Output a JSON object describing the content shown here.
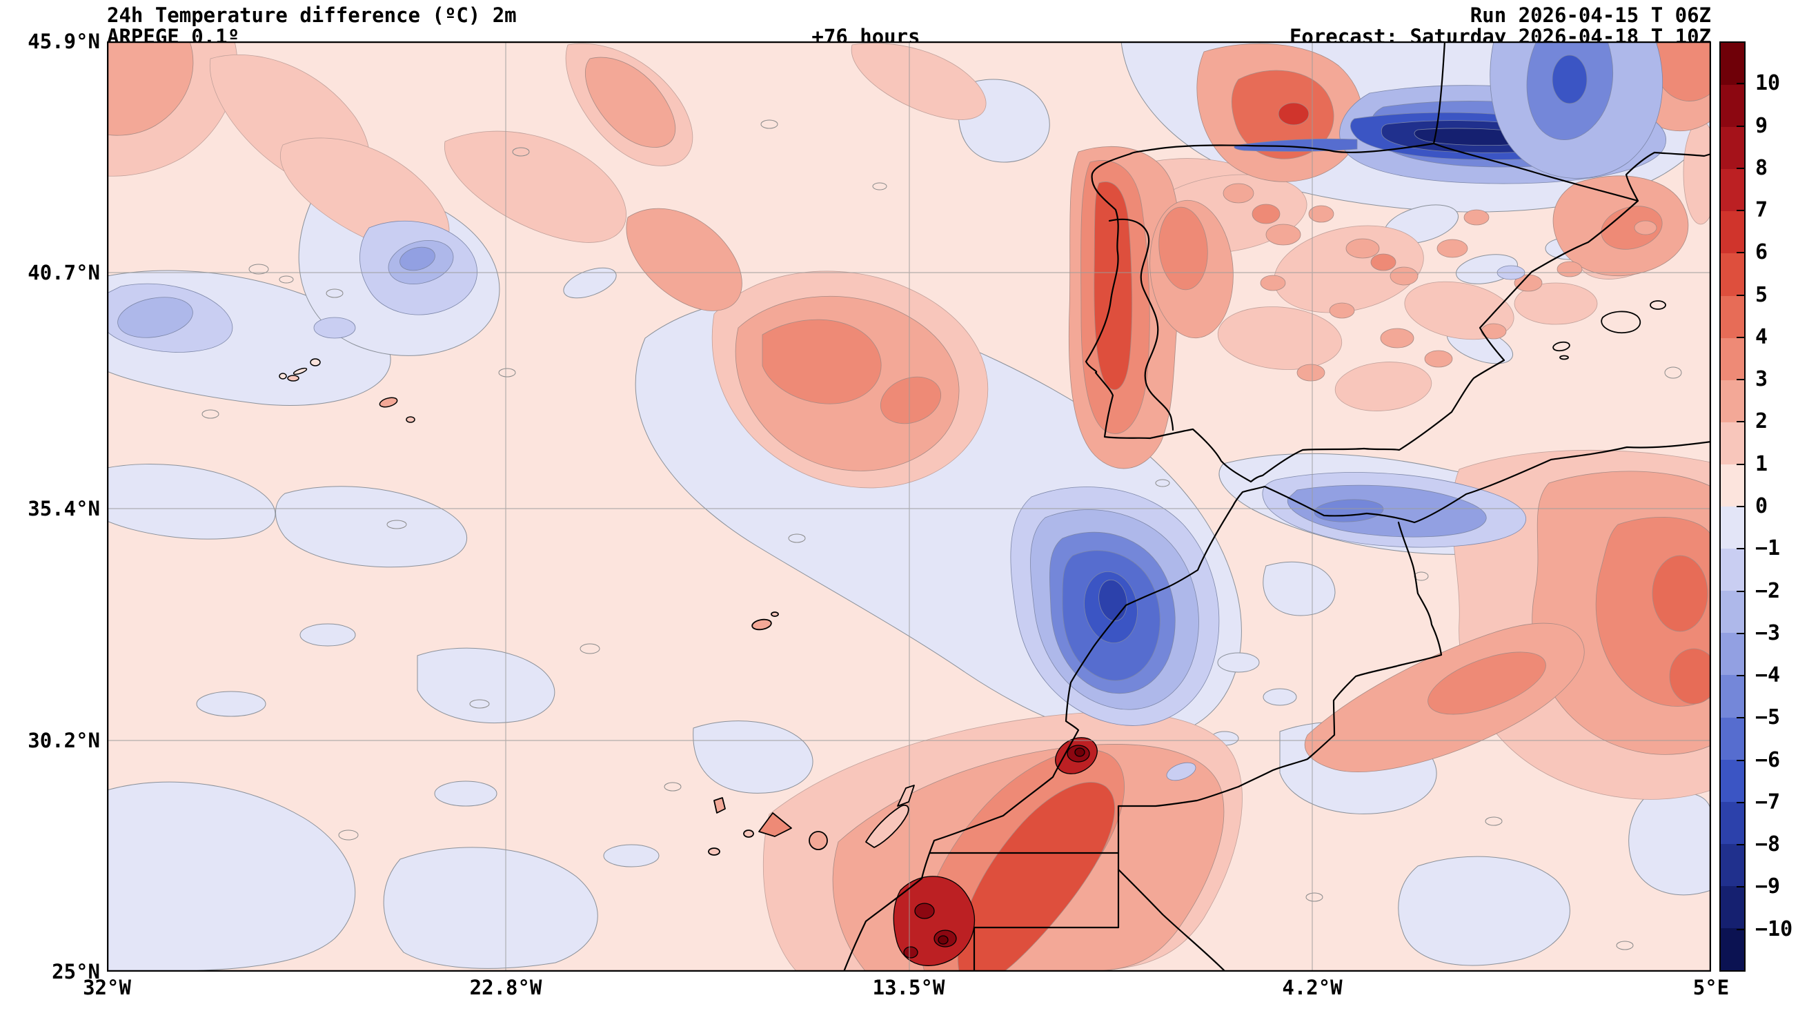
{
  "header": {
    "title": "24h Temperature difference (ºC) 2m",
    "model": "ARPEGE 0.1º",
    "lead_time": "+76 hours",
    "run": "Run 2026-04-15 T 06Z",
    "forecast": "Forecast: Saturday 2026-04-18 T 10Z"
  },
  "axes": {
    "y_ticks": [
      "45.9°N",
      "40.7°N",
      "35.4°N",
      "30.2°N",
      "25°N"
    ],
    "x_ticks": [
      "32°W",
      "22.8°W",
      "13.5°W",
      "4.2°W",
      "5°E"
    ]
  },
  "colorbar": {
    "max_label": "10",
    "min_label": "−10",
    "tick_labels": [
      "10",
      "9",
      "8",
      "7",
      "6",
      "5",
      "4",
      "3",
      "2",
      "1",
      "0",
      "−1",
      "−2",
      "−3",
      "−4",
      "−5",
      "−6",
      "−7",
      "−8",
      "−9",
      "−10"
    ],
    "segment_colors_top_to_bottom": [
      "#6f0008",
      "#8c0711",
      "#a5121a",
      "#bc2023",
      "#d0342c",
      "#de4f3d",
      "#e76c57",
      "#ee8a76",
      "#f3a897",
      "#f8c6bb",
      "#fce4dd",
      "#e3e5f7",
      "#c9cef2",
      "#aeb8ea",
      "#92a0e2",
      "#7487d9",
      "#566dcf",
      "#3b55c4",
      "#2c41ab",
      "#20308d",
      "#152070",
      "#0b1252"
    ],
    "positive_extreme_color": "#6f0008",
    "negative_extreme_color": "#0b1252",
    "background_positive_color": "#fce4dd",
    "background_negative_color": "#e3e5f7"
  }
}
